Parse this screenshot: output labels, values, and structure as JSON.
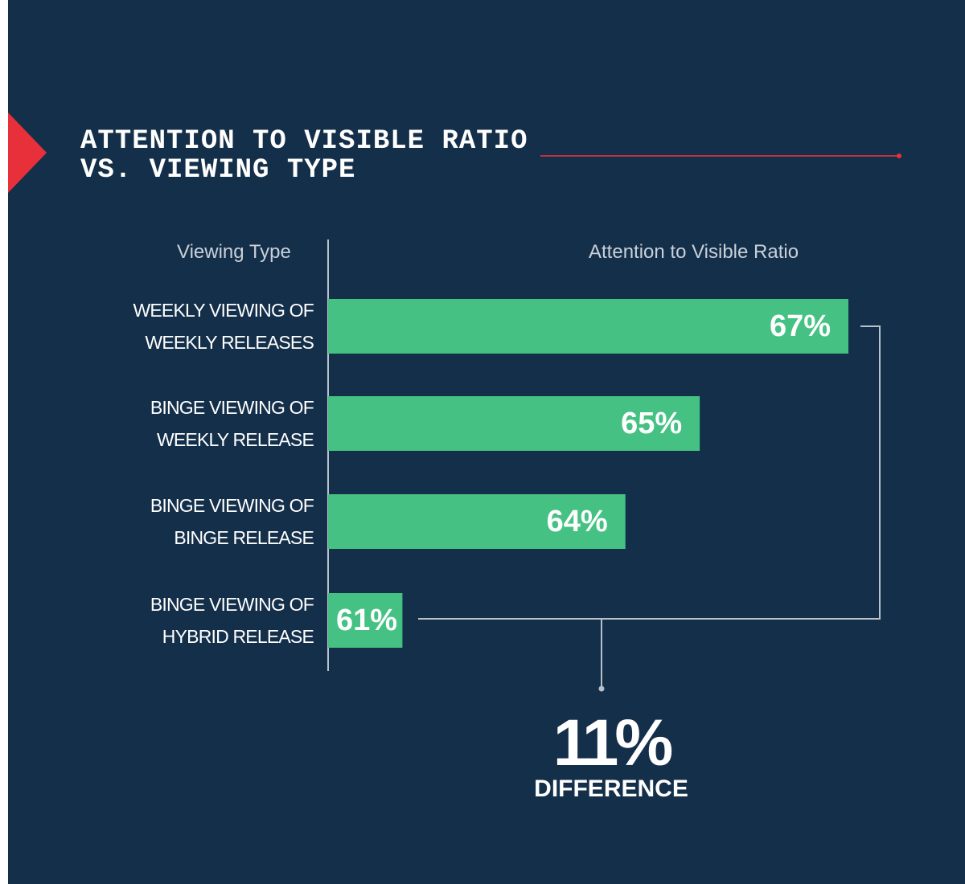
{
  "chart_data": {
    "type": "barh",
    "title": "ATTENTION TO VISIBLE RATIO VS. VIEWING TYPE",
    "y_label": "Viewing Type",
    "x_label": "Attention to Visible Ratio",
    "categories": [
      "WEEKLY VIEWING OF WEEKLY RELEASES",
      "BINGE VIEWING OF WEEKLY RELEASE",
      "BINGE VIEWING OF BINGE RELEASE",
      "BINGE VIEWING OF HYBRID RELEASE"
    ],
    "values": [
      67,
      65,
      64,
      61
    ],
    "value_labels": [
      "67%",
      "65%",
      "64%",
      "61%"
    ],
    "color": "#45c283",
    "xlim": [
      60,
      67
    ],
    "annotation": {
      "value": "11%",
      "label": "DIFFERENCE"
    }
  }
}
